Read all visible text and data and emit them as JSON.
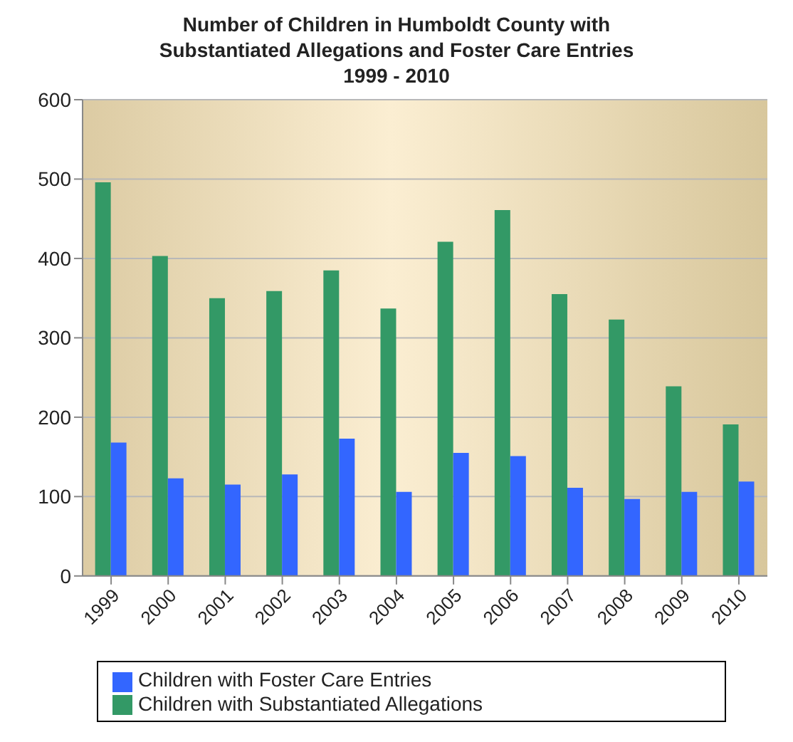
{
  "chart_data": {
    "type": "bar",
    "title": "Number of Children in Humboldt County with\nSubstantiated Allegations and Foster Care Entries\n1999 - 2010",
    "categories": [
      "1999",
      "2000",
      "2001",
      "2002",
      "2003",
      "2004",
      "2005",
      "2006",
      "2007",
      "2008",
      "2009",
      "2010"
    ],
    "series": [
      {
        "name": "Children with Substantiated Allegations",
        "color": "#339966",
        "values": [
          496,
          403,
          350,
          359,
          385,
          337,
          421,
          461,
          355,
          323,
          239,
          191
        ]
      },
      {
        "name": "Children with Foster Care Entries",
        "color": "#3366ff",
        "values": [
          168,
          123,
          115,
          128,
          173,
          106,
          155,
          151,
          111,
          97,
          106,
          119
        ]
      }
    ],
    "ylim": [
      0,
      600
    ],
    "yticks": [
      0,
      100,
      200,
      300,
      400,
      500,
      600
    ],
    "grid": "y",
    "legend": "bottom"
  }
}
